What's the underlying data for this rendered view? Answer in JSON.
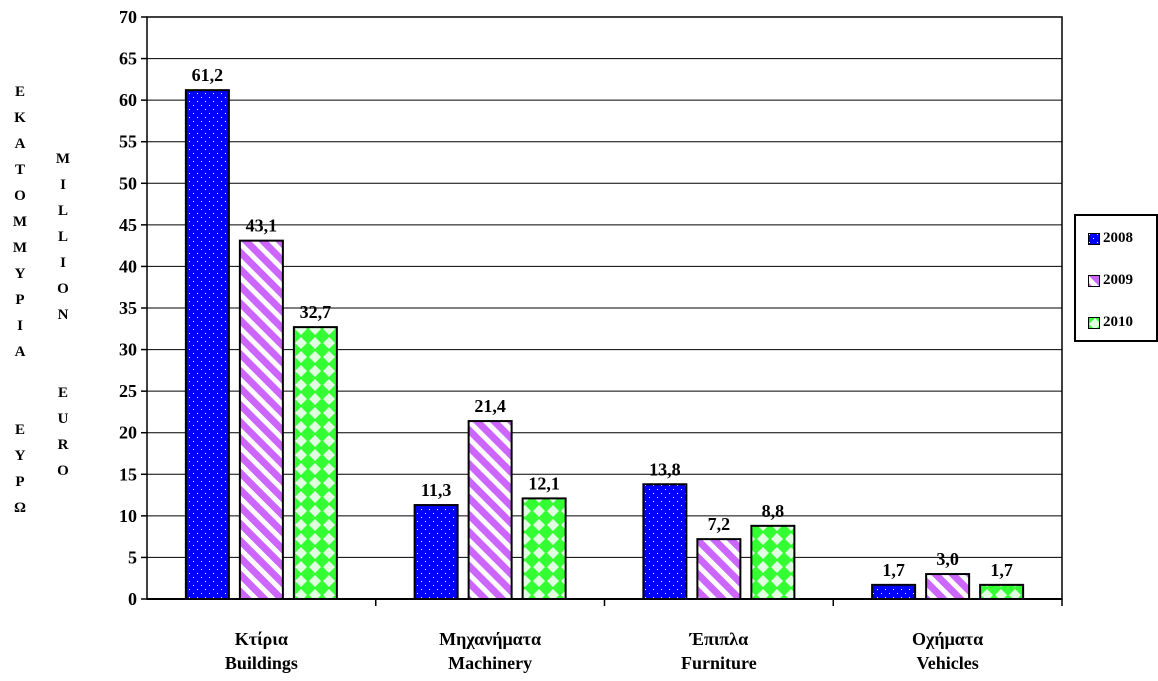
{
  "chart_data": {
    "type": "bar",
    "categories": [
      "Κτίρια\nBuildings",
      "Μηχανήματα\nMachinery",
      "Έπιπλα\nFurniture",
      "Οχήματα\nVehicles"
    ],
    "series": [
      {
        "name": "2008",
        "values": [
          61.2,
          11.3,
          13.8,
          1.7
        ],
        "labels": [
          "61,2",
          "11,3",
          "13,8",
          "1,7"
        ],
        "color": "#0000ff",
        "pattern": "dots"
      },
      {
        "name": "2009",
        "values": [
          43.1,
          21.4,
          7.2,
          3.0
        ],
        "labels": [
          "43,1",
          "21,4",
          "7,2",
          "3,0"
        ],
        "color": "#cc66ff",
        "pattern": "diagonal-stripes"
      },
      {
        "name": "2010",
        "values": [
          32.7,
          12.1,
          8.8,
          1.7
        ],
        "labels": [
          "32,7",
          "12,1",
          "8,8",
          "1,7"
        ],
        "color": "#33ff33",
        "pattern": "checker-diamond"
      }
    ],
    "ylim": [
      0,
      70
    ],
    "yticks": [
      0,
      5,
      10,
      15,
      20,
      25,
      30,
      35,
      40,
      45,
      50,
      55,
      60,
      65,
      70
    ],
    "grid": true,
    "legend_position": "right",
    "ylabel_greek": "ΕΚΑΤΟΜΜΥΡΙΑ ΕΥΡΩ",
    "ylabel_english": "MILLION EURO"
  }
}
